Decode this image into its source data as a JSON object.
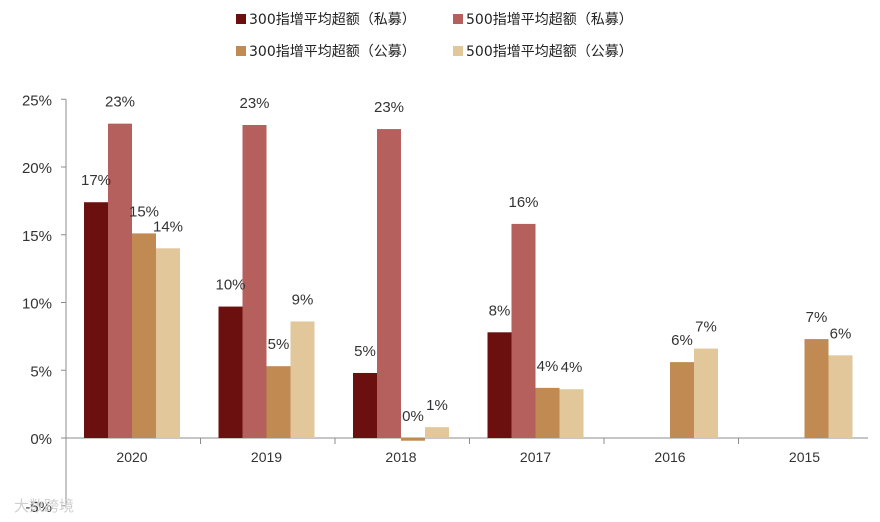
{
  "chart_data": {
    "type": "bar",
    "categories": [
      "2020",
      "2019",
      "2018",
      "2017",
      "2016",
      "2015"
    ],
    "y_ticks": [
      "-5%",
      "0%",
      "5%",
      "10%",
      "15%",
      "20%",
      "25%"
    ],
    "ylim": [
      -5,
      25
    ],
    "series": [
      {
        "name": "300指增平均超额（私募）",
        "color": "#6b0f0f",
        "values": [
          17.4,
          9.7,
          4.8,
          7.8,
          null,
          null
        ],
        "labels": [
          "17%",
          "10%",
          "5%",
          "8%",
          "",
          ""
        ]
      },
      {
        "name": "500指增平均超额（私募）",
        "color": "#b5605c",
        "values": [
          23.2,
          23.1,
          22.8,
          15.8,
          null,
          null
        ],
        "labels": [
          "23%",
          "23%",
          "23%",
          "16%",
          "",
          ""
        ]
      },
      {
        "name": "300指增平均超额（公募）",
        "color": "#c08a52",
        "values": [
          15.1,
          5.3,
          -0.2,
          3.7,
          5.6,
          7.3
        ],
        "labels": [
          "15%",
          "5%",
          "0%",
          "4%",
          "6%",
          "7%"
        ]
      },
      {
        "name": "500指增平均超额（公募）",
        "color": "#e2c79b",
        "values": [
          14.0,
          8.6,
          0.8,
          3.6,
          6.6,
          6.1
        ],
        "labels": [
          "14%",
          "9%",
          "1%",
          "4%",
          "7%",
          "6%"
        ]
      }
    ],
    "legend_position": "top",
    "grid": false
  },
  "watermark": "大数跨境"
}
